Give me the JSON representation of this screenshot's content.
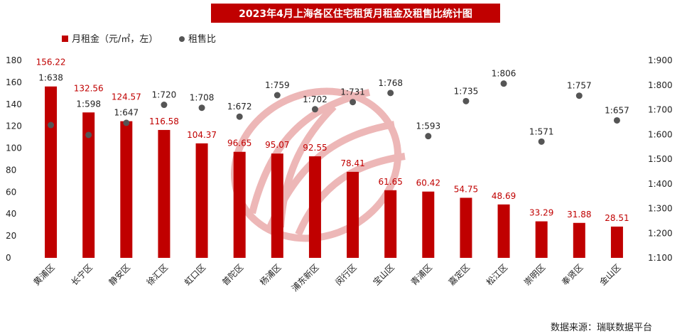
{
  "title": "2023年4月上海各区住宅租赁月租金及租售比统计图",
  "source": "数据来源：瑞联数据平台",
  "colors": {
    "bar": "#c00000",
    "dot": "#555555",
    "value_label": "#c00000",
    "title_bg": "#c00000"
  },
  "chart_data": {
    "type": "bar",
    "categories": [
      "黄浦区",
      "长宁区",
      "静安区",
      "徐汇区",
      "虹口区",
      "普陀区",
      "杨浦区",
      "浦东新区",
      "闵行区",
      "宝山区",
      "青浦区",
      "嘉定区",
      "松江区",
      "崇明区",
      "奉贤区",
      "金山区"
    ],
    "series": [
      {
        "name": "月租金（元/㎡，左）",
        "type": "bar",
        "axis": "left",
        "values": [
          156.22,
          132.56,
          124.57,
          116.58,
          104.37,
          96.65,
          95.07,
          92.55,
          78.41,
          61.65,
          60.42,
          54.75,
          48.69,
          33.29,
          31.88,
          28.51
        ],
        "labels": [
          "156.22",
          "132.56",
          "124.57",
          "116.58",
          "104.37",
          "96.65",
          "95.07",
          "92.55",
          "78.41",
          "61.65",
          "60.42",
          "54.75",
          "48.69",
          "33.29",
          "31.88",
          "28.51"
        ]
      },
      {
        "name": "租售比",
        "type": "scatter",
        "axis": "right",
        "values": [
          638,
          598,
          647,
          720,
          708,
          672,
          759,
          702,
          731,
          768,
          593,
          735,
          806,
          571,
          757,
          657
        ],
        "labels": [
          "1:638",
          "1:598",
          "1:647",
          "1:720",
          "1:708",
          "1:672",
          "1:759",
          "1:702",
          "1:731",
          "1:768",
          "1:593",
          "1:735",
          "1:806",
          "1:571",
          "1:757",
          "1:657"
        ]
      }
    ],
    "y_left": {
      "min": 0,
      "max": 180,
      "ticks": [
        "0",
        "20",
        "40",
        "60",
        "80",
        "100",
        "120",
        "140",
        "160",
        "180"
      ]
    },
    "y_right": {
      "min": 100,
      "max": 900,
      "ticks": [
        "1:100",
        "1:200",
        "1:300",
        "1:400",
        "1:500",
        "1:600",
        "1:700",
        "1:800",
        "1:900"
      ]
    },
    "legend": {
      "position": "top-left",
      "items": [
        "月租金（元/㎡，左）",
        "租售比"
      ]
    },
    "grid": false
  }
}
